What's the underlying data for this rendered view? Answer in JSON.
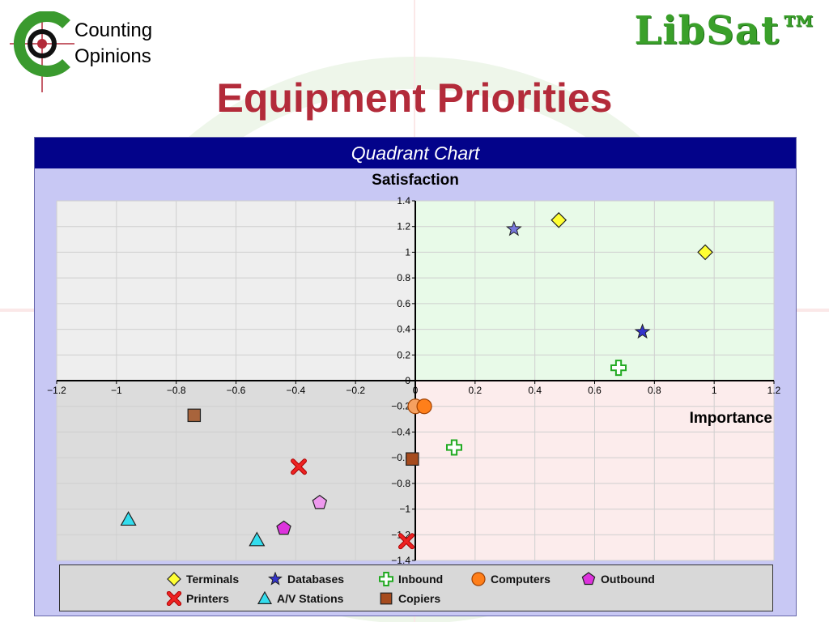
{
  "logo": {
    "line1": "Counting",
    "line2": "Opinions"
  },
  "brand": "LibSat™",
  "page_title": "Equipment Priorities",
  "chart_title": "Quadrant Chart",
  "colors": {
    "title": "#b32b3a",
    "brand": "#3aa02a",
    "header": "#03038a",
    "frame": "#c8c8f4",
    "q_top_left": "#eeeeee",
    "q_top_right": "#e8fae8",
    "q_bottom_left": "#dcdcdc",
    "q_bottom_right": "#fcecec"
  },
  "chart_data": {
    "type": "scatter",
    "title": "Quadrant Chart",
    "xlabel": "Importance",
    "ylabel": "Satisfaction",
    "xlim": [
      -1.2,
      1.2
    ],
    "ylim": [
      -1.4,
      1.4
    ],
    "x_ticks": [
      -1.2,
      -1,
      -0.8,
      -0.6,
      -0.4,
      -0.2,
      0,
      0.2,
      0.4,
      0.6,
      0.8,
      1,
      1.2
    ],
    "x_tick_labels": [
      "−1.2",
      "−1",
      "−0.8",
      "−0.6",
      "−0.4",
      "−0.2",
      "0",
      "0.2",
      "0.4",
      "0.6",
      "0.8",
      "1",
      "1.2"
    ],
    "y_ticks": [
      1.4,
      1.2,
      1,
      0.8,
      0.6,
      0.4,
      0.2,
      0,
      -0.2,
      -0.4,
      -0.6,
      -0.8,
      -1,
      -1.2,
      -1.4
    ],
    "y_tick_labels": [
      "1.4",
      "1.2",
      "1",
      "0.8",
      "0.6",
      "0.4",
      "0.2",
      "0",
      "−0.2",
      "−0.4",
      "−0.6",
      "−0.8",
      "−1",
      "−1.2",
      "−1.4"
    ],
    "grid": true,
    "legend_position": "bottom",
    "series": [
      {
        "name": "Terminals",
        "marker": "diamond",
        "points": [
          [
            0.48,
            1.25
          ],
          [
            0.97,
            1.0
          ]
        ]
      },
      {
        "name": "Databases",
        "marker": "star",
        "points": [
          [
            0.33,
            1.18
          ],
          [
            0.76,
            0.38
          ]
        ]
      },
      {
        "name": "Inbound",
        "marker": "plus",
        "points": [
          [
            0.68,
            0.1
          ],
          [
            0.13,
            -0.52
          ]
        ]
      },
      {
        "name": "Computers",
        "marker": "circle",
        "points": [
          [
            0.0,
            -0.2
          ],
          [
            0.03,
            -0.2
          ]
        ]
      },
      {
        "name": "Outbound",
        "marker": "pentagon",
        "points": [
          [
            -0.32,
            -0.95
          ],
          [
            -0.44,
            -1.15
          ]
        ]
      },
      {
        "name": "Printers",
        "marker": "x",
        "points": [
          [
            -0.39,
            -0.67
          ],
          [
            -0.03,
            -1.25
          ]
        ]
      },
      {
        "name": "A/V Stations",
        "marker": "triangle",
        "points": [
          [
            -0.96,
            -1.08
          ],
          [
            -0.53,
            -1.24
          ]
        ]
      },
      {
        "name": "Copiers",
        "marker": "square",
        "points": [
          [
            -0.74,
            -0.27
          ],
          [
            -0.01,
            -0.61
          ]
        ]
      }
    ]
  }
}
